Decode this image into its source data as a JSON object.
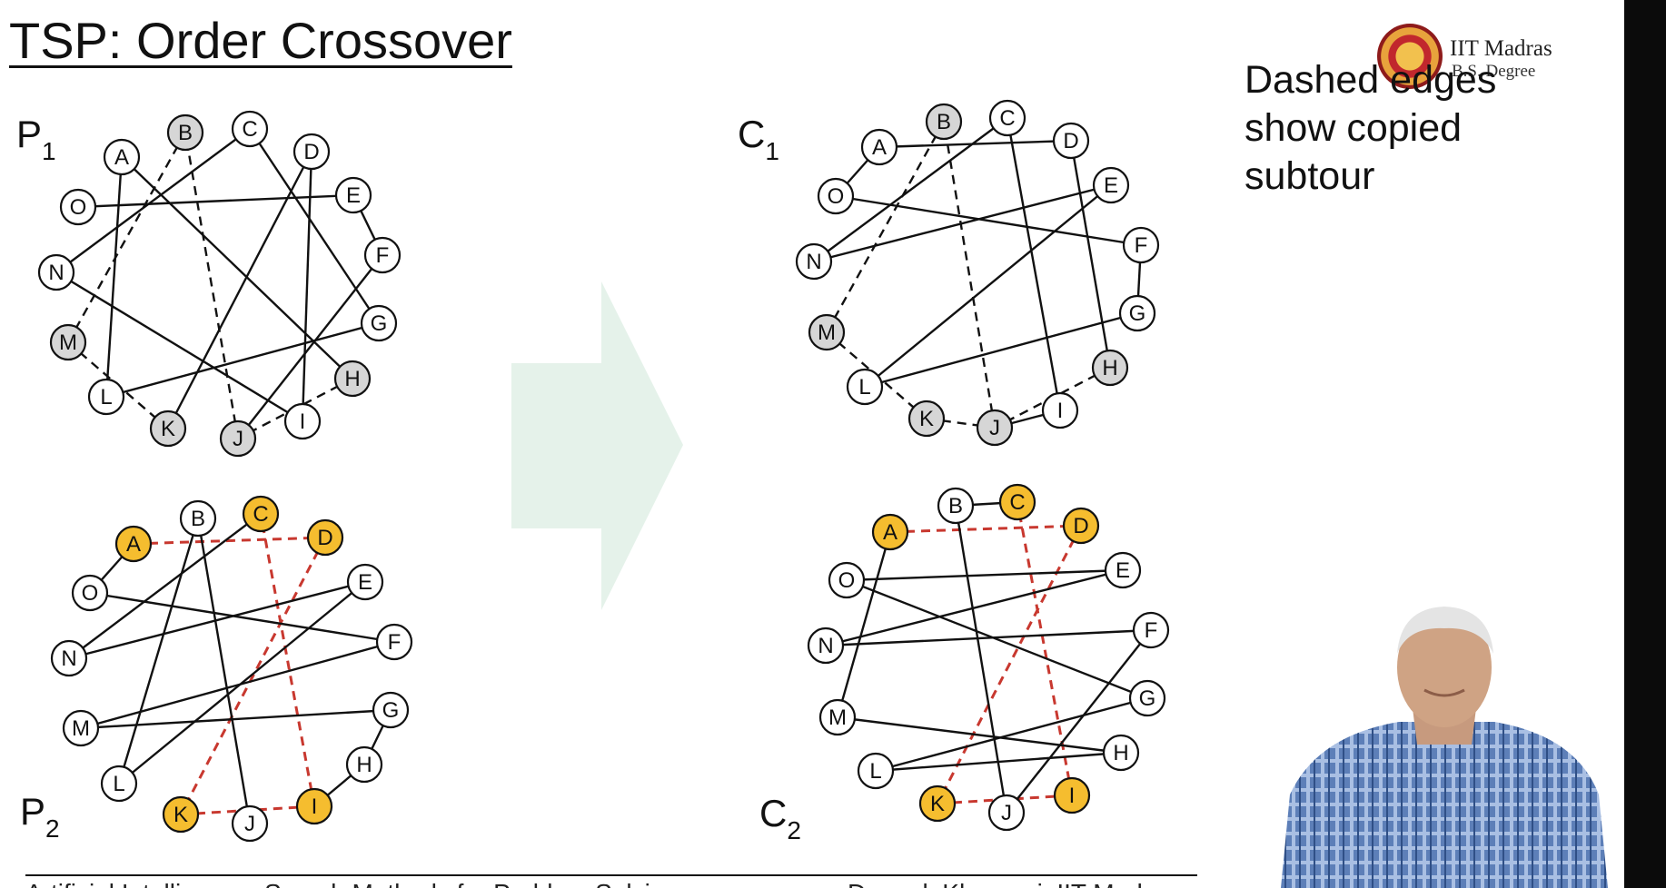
{
  "slide": {
    "title": "TSP: Order Crossover",
    "note_lines": [
      "Dashed edges",
      "show copied",
      "subtour"
    ],
    "logo": {
      "name": "IIT Madras",
      "sub": "B.S. Degree"
    },
    "footer": {
      "left": "Artificial Intelligence: Search Methods for Problem Solving",
      "right": "Deepak Khemani, IIT Madras"
    }
  },
  "colors": {
    "highlight_fill": "#f5bd2f",
    "gray_fill": "#d6d6d6",
    "dashed_red": "#c8382f",
    "arrow": "#e5f2ea"
  },
  "diagrams": [
    {
      "id": "p1",
      "label": "P",
      "subscript": "1",
      "nodes": [
        {
          "id": "A",
          "fill": "white"
        },
        {
          "id": "B",
          "fill": "gray"
        },
        {
          "id": "C",
          "fill": "white"
        },
        {
          "id": "D",
          "fill": "white"
        },
        {
          "id": "E",
          "fill": "white"
        },
        {
          "id": "F",
          "fill": "white"
        },
        {
          "id": "G",
          "fill": "white"
        },
        {
          "id": "H",
          "fill": "gray"
        },
        {
          "id": "I",
          "fill": "white"
        },
        {
          "id": "J",
          "fill": "gray"
        },
        {
          "id": "K",
          "fill": "gray"
        },
        {
          "id": "L",
          "fill": "white"
        },
        {
          "id": "M",
          "fill": "gray"
        },
        {
          "id": "N",
          "fill": "white"
        },
        {
          "id": "O",
          "fill": "white"
        }
      ],
      "edges": [
        {
          "from": "A",
          "to": "H",
          "style": "solid"
        },
        {
          "from": "H",
          "to": "J",
          "style": "dashed"
        },
        {
          "from": "J",
          "to": "B",
          "style": "dashed"
        },
        {
          "from": "B",
          "to": "M",
          "style": "dashed"
        },
        {
          "from": "M",
          "to": "K",
          "style": "dashed"
        },
        {
          "from": "K",
          "to": "D",
          "style": "solid"
        },
        {
          "from": "D",
          "to": "I",
          "style": "solid"
        },
        {
          "from": "I",
          "to": "N",
          "style": "solid"
        },
        {
          "from": "N",
          "to": "C",
          "style": "solid"
        },
        {
          "from": "C",
          "to": "G",
          "style": "solid"
        },
        {
          "from": "G",
          "to": "L",
          "style": "solid"
        },
        {
          "from": "L",
          "to": "A",
          "style": "solid"
        },
        {
          "from": "O",
          "to": "E",
          "style": "solid"
        },
        {
          "from": "E",
          "to": "F",
          "style": "solid"
        },
        {
          "from": "F",
          "to": "J",
          "style": "solid"
        }
      ]
    },
    {
      "id": "p2",
      "label": "P",
      "subscript": "2",
      "nodes": [
        {
          "id": "A",
          "fill": "yellow"
        },
        {
          "id": "B",
          "fill": "white"
        },
        {
          "id": "C",
          "fill": "yellow"
        },
        {
          "id": "D",
          "fill": "yellow"
        },
        {
          "id": "E",
          "fill": "white"
        },
        {
          "id": "F",
          "fill": "white"
        },
        {
          "id": "G",
          "fill": "white"
        },
        {
          "id": "H",
          "fill": "white"
        },
        {
          "id": "I",
          "fill": "yellow"
        },
        {
          "id": "J",
          "fill": "white"
        },
        {
          "id": "K",
          "fill": "yellow"
        },
        {
          "id": "L",
          "fill": "white"
        },
        {
          "id": "M",
          "fill": "white"
        },
        {
          "id": "N",
          "fill": "white"
        },
        {
          "id": "O",
          "fill": "white"
        }
      ],
      "edges": [
        {
          "from": "A",
          "to": "O",
          "style": "solid"
        },
        {
          "from": "A",
          "to": "D",
          "style": "red-dashed"
        },
        {
          "from": "D",
          "to": "K",
          "style": "red-dashed"
        },
        {
          "from": "K",
          "to": "I",
          "style": "red-dashed"
        },
        {
          "from": "I",
          "to": "C",
          "style": "red-dashed"
        },
        {
          "from": "C",
          "to": "N",
          "style": "solid"
        },
        {
          "from": "N",
          "to": "E",
          "style": "solid"
        },
        {
          "from": "O",
          "to": "F",
          "style": "solid"
        },
        {
          "from": "F",
          "to": "M",
          "style": "solid"
        },
        {
          "from": "M",
          "to": "G",
          "style": "solid"
        },
        {
          "from": "G",
          "to": "H",
          "style": "solid"
        },
        {
          "from": "H",
          "to": "I",
          "style": "solid"
        },
        {
          "from": "E",
          "to": "L",
          "style": "solid"
        },
        {
          "from": "L",
          "to": "B",
          "style": "solid"
        },
        {
          "from": "B",
          "to": "J",
          "style": "solid"
        }
      ]
    },
    {
      "id": "c1",
      "label": "C",
      "subscript": "1",
      "nodes": [
        {
          "id": "A",
          "fill": "white"
        },
        {
          "id": "B",
          "fill": "gray"
        },
        {
          "id": "C",
          "fill": "white"
        },
        {
          "id": "D",
          "fill": "white"
        },
        {
          "id": "E",
          "fill": "white"
        },
        {
          "id": "F",
          "fill": "white"
        },
        {
          "id": "G",
          "fill": "white"
        },
        {
          "id": "H",
          "fill": "gray"
        },
        {
          "id": "I",
          "fill": "white"
        },
        {
          "id": "J",
          "fill": "gray"
        },
        {
          "id": "K",
          "fill": "gray"
        },
        {
          "id": "L",
          "fill": "white"
        },
        {
          "id": "M",
          "fill": "gray"
        },
        {
          "id": "N",
          "fill": "white"
        },
        {
          "id": "O",
          "fill": "white"
        }
      ],
      "edges": [
        {
          "from": "A",
          "to": "O",
          "style": "solid"
        },
        {
          "from": "A",
          "to": "D",
          "style": "solid"
        },
        {
          "from": "D",
          "to": "H",
          "style": "solid"
        },
        {
          "from": "H",
          "to": "J",
          "style": "dashed"
        },
        {
          "from": "J",
          "to": "B",
          "style": "dashed"
        },
        {
          "from": "B",
          "to": "M",
          "style": "dashed"
        },
        {
          "from": "M",
          "to": "K",
          "style": "dashed"
        },
        {
          "from": "K",
          "to": "J",
          "style": "dashed"
        },
        {
          "from": "J",
          "to": "I",
          "style": "solid"
        },
        {
          "from": "I",
          "to": "C",
          "style": "solid"
        },
        {
          "from": "C",
          "to": "N",
          "style": "solid"
        },
        {
          "from": "N",
          "to": "E",
          "style": "solid"
        },
        {
          "from": "E",
          "to": "L",
          "style": "solid"
        },
        {
          "from": "L",
          "to": "G",
          "style": "solid"
        },
        {
          "from": "O",
          "to": "F",
          "style": "solid"
        },
        {
          "from": "F",
          "to": "G",
          "style": "solid"
        }
      ]
    },
    {
      "id": "c2",
      "label": "C",
      "subscript": "2",
      "nodes": [
        {
          "id": "A",
          "fill": "yellow"
        },
        {
          "id": "B",
          "fill": "white"
        },
        {
          "id": "C",
          "fill": "yellow"
        },
        {
          "id": "D",
          "fill": "yellow"
        },
        {
          "id": "E",
          "fill": "white"
        },
        {
          "id": "F",
          "fill": "white"
        },
        {
          "id": "G",
          "fill": "white"
        },
        {
          "id": "H",
          "fill": "white"
        },
        {
          "id": "I",
          "fill": "yellow"
        },
        {
          "id": "J",
          "fill": "white"
        },
        {
          "id": "K",
          "fill": "yellow"
        },
        {
          "id": "L",
          "fill": "white"
        },
        {
          "id": "M",
          "fill": "white"
        },
        {
          "id": "N",
          "fill": "white"
        },
        {
          "id": "O",
          "fill": "white"
        }
      ],
      "edges": [
        {
          "from": "A",
          "to": "D",
          "style": "red-dashed"
        },
        {
          "from": "D",
          "to": "K",
          "style": "red-dashed"
        },
        {
          "from": "K",
          "to": "I",
          "style": "red-dashed"
        },
        {
          "from": "I",
          "to": "C",
          "style": "red-dashed"
        },
        {
          "from": "C",
          "to": "B",
          "style": "solid"
        },
        {
          "from": "B",
          "to": "J",
          "style": "solid"
        },
        {
          "from": "J",
          "to": "F",
          "style": "solid"
        },
        {
          "from": "F",
          "to": "N",
          "style": "solid"
        },
        {
          "from": "N",
          "to": "E",
          "style": "solid"
        },
        {
          "from": "E",
          "to": "O",
          "style": "solid"
        },
        {
          "from": "O",
          "to": "G",
          "style": "solid"
        },
        {
          "from": "G",
          "to": "L",
          "style": "solid"
        },
        {
          "from": "L",
          "to": "H",
          "style": "solid"
        },
        {
          "from": "H",
          "to": "M",
          "style": "solid"
        },
        {
          "from": "M",
          "to": "A",
          "style": "solid"
        }
      ]
    }
  ]
}
